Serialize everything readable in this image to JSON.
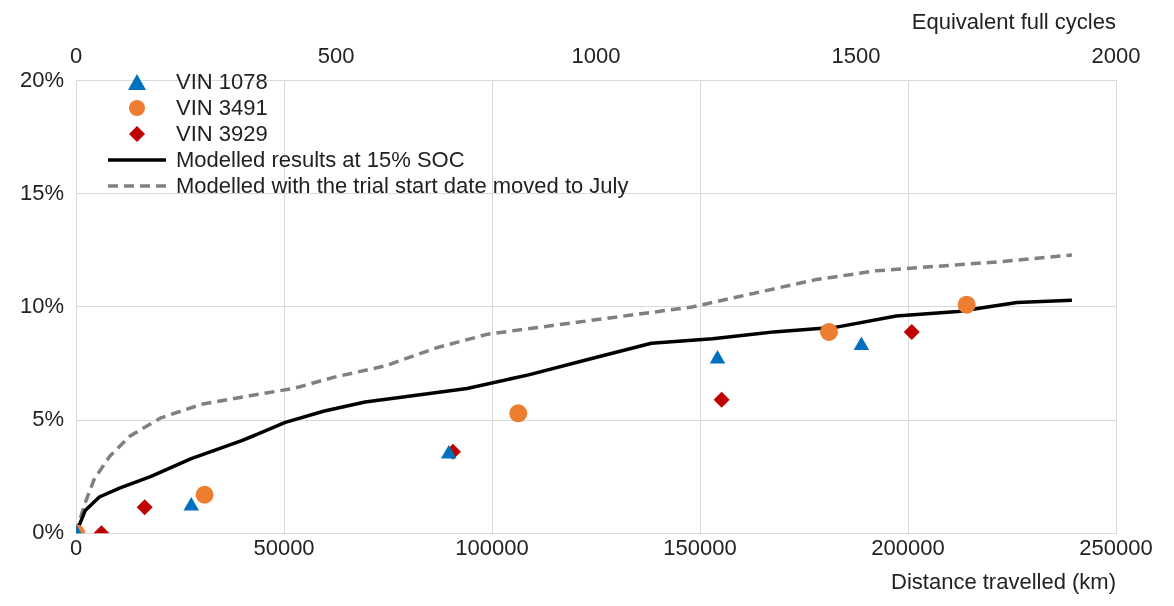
{
  "chart_data": {
    "type": "scatter",
    "xlabel": "Distance travelled (km)",
    "x2label": "Equivalent full cycles",
    "xlim": [
      0,
      250000
    ],
    "xticks": [
      0,
      50000,
      100000,
      150000,
      200000,
      250000
    ],
    "x2lim": [
      0,
      2000
    ],
    "x2ticks": [
      0,
      500,
      1000,
      1500,
      2000
    ],
    "ylim": [
      0,
      20
    ],
    "yticks": [
      {
        "value": 0,
        "label": "0%"
      },
      {
        "value": 5,
        "label": "5%"
      },
      {
        "value": 10,
        "label": "10%"
      },
      {
        "value": 15,
        "label": "15%"
      },
      {
        "value": 20,
        "label": "20%"
      }
    ],
    "grid": true,
    "legend": "top left",
    "series": [
      {
        "name": "VIN 1078",
        "marker": "triangle",
        "color": "#0070c0",
        "x": [
          0,
          27700,
          89600,
          154200,
          188800
        ],
        "values": [
          0,
          1.2,
          3.5,
          7.7,
          8.3
        ]
      },
      {
        "name": "VIN 3491",
        "marker": "circle",
        "color": "#ed7d31",
        "x": [
          0,
          30900,
          106300,
          181000,
          214100
        ],
        "values": [
          0,
          1.7,
          5.3,
          8.9,
          10.1
        ]
      },
      {
        "name": "VIN 3929",
        "marker": "diamond",
        "color": "#c00000",
        "x": [
          6100,
          16500,
          90600,
          155200,
          200900
        ],
        "values": [
          0,
          1.15,
          3.6,
          5.9,
          8.9
        ]
      },
      {
        "name": "Modelled results at 15% SOC",
        "type": "line",
        "marker": "none",
        "line_style": "solid",
        "color": "#000000",
        "x": [
          0,
          2200,
          5600,
          10600,
          17900,
          27700,
          40000,
          50300,
          59700,
          69500,
          81800,
          94000,
          108800,
          123500,
          138300,
          153000,
          167700,
          182500,
          197200,
          212000,
          226200,
          239400
        ],
        "values": [
          0,
          1.0,
          1.6,
          2.0,
          2.5,
          3.3,
          4.1,
          4.9,
          5.4,
          5.8,
          6.1,
          6.4,
          7.0,
          7.7,
          8.4,
          8.6,
          8.9,
          9.1,
          9.6,
          9.8,
          10.2,
          10.3
        ]
      },
      {
        "name": "Modelled with the trial start date moved to July",
        "type": "line",
        "marker": "none",
        "line_style": "dashed",
        "color": "#808080",
        "x": [
          0,
          2000,
          4400,
          8100,
          13000,
          20400,
          30200,
          42500,
          52300,
          62100,
          74400,
          86700,
          99000,
          111200,
          123500,
          135800,
          148100,
          162800,
          177600,
          192300,
          207000,
          221800,
          239400
        ],
        "values": [
          0,
          1.25,
          2.4,
          3.4,
          4.3,
          5.1,
          5.7,
          6.1,
          6.4,
          6.9,
          7.4,
          8.2,
          8.8,
          9.1,
          9.4,
          9.7,
          10.0,
          10.6,
          11.2,
          11.6,
          11.8,
          12.0,
          12.3
        ]
      }
    ]
  }
}
